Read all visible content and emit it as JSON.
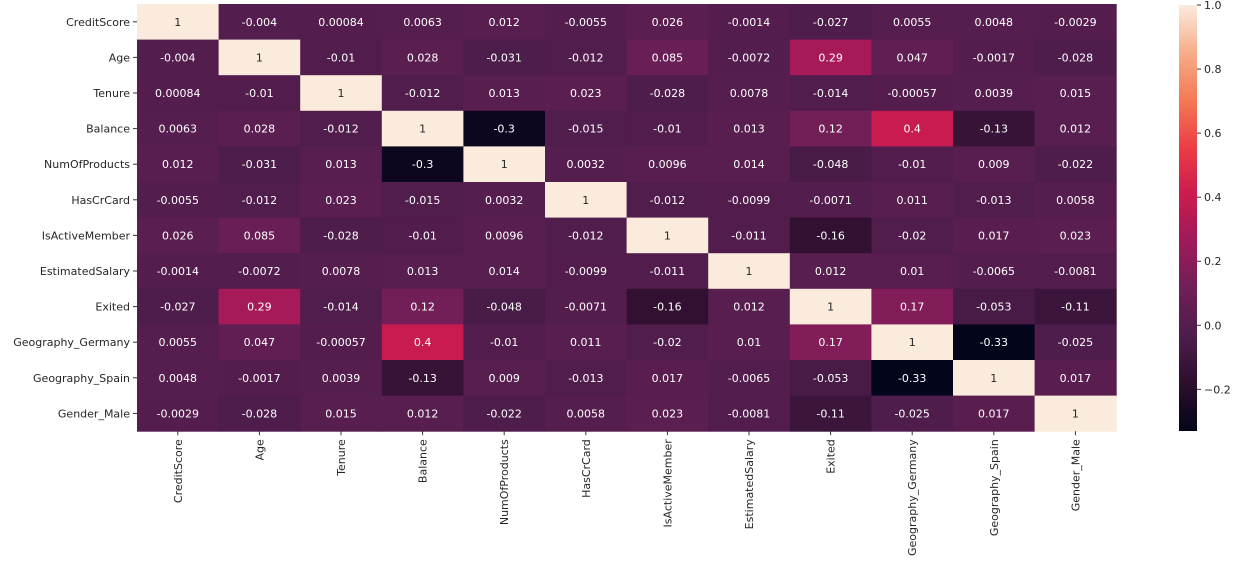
{
  "chart_data": {
    "type": "heatmap",
    "title": "",
    "xlabel": "",
    "ylabel": "",
    "rows": [
      "CreditScore",
      "Age",
      "Tenure",
      "Balance",
      "NumOfProducts",
      "HasCrCard",
      "IsActiveMember",
      "EstimatedSalary",
      "Exited",
      "Geography_Germany",
      "Geography_Spain",
      "Gender_Male"
    ],
    "columns": [
      "CreditScore",
      "Age",
      "Tenure",
      "Balance",
      "NumOfProducts",
      "HasCrCard",
      "IsActiveMember",
      "EstimatedSalary",
      "Exited",
      "Geography_Germany",
      "Geography_Spain",
      "Gender_Male"
    ],
    "values": [
      [
        1,
        -0.004,
        0.00084,
        0.0063,
        0.012,
        -0.0055,
        0.026,
        -0.0014,
        -0.027,
        0.0055,
        0.0048,
        -0.0029
      ],
      [
        -0.004,
        1,
        -0.01,
        0.028,
        -0.031,
        -0.012,
        0.085,
        -0.0072,
        0.29,
        0.047,
        -0.0017,
        -0.028
      ],
      [
        0.00084,
        -0.01,
        1,
        -0.012,
        0.013,
        0.023,
        -0.028,
        0.0078,
        -0.014,
        -0.00057,
        0.0039,
        0.015
      ],
      [
        0.0063,
        0.028,
        -0.012,
        1,
        -0.3,
        -0.015,
        -0.01,
        0.013,
        0.12,
        0.4,
        -0.13,
        0.012
      ],
      [
        0.012,
        -0.031,
        0.013,
        -0.3,
        1,
        0.0032,
        0.0096,
        0.014,
        -0.048,
        -0.01,
        0.009,
        -0.022
      ],
      [
        -0.0055,
        -0.012,
        0.023,
        -0.015,
        0.0032,
        1,
        -0.012,
        -0.0099,
        -0.0071,
        0.011,
        -0.013,
        0.0058
      ],
      [
        0.026,
        0.085,
        -0.028,
        -0.01,
        0.0096,
        -0.012,
        1,
        -0.011,
        -0.16,
        -0.02,
        0.017,
        0.023
      ],
      [
        -0.0014,
        -0.0072,
        0.0078,
        0.013,
        0.014,
        -0.0099,
        -0.011,
        1,
        0.012,
        0.01,
        -0.0065,
        -0.0081
      ],
      [
        -0.027,
        0.29,
        -0.014,
        0.12,
        -0.048,
        -0.0071,
        -0.16,
        0.012,
        1,
        0.17,
        -0.053,
        -0.11
      ],
      [
        0.0055,
        0.047,
        -0.00057,
        0.4,
        -0.01,
        0.011,
        -0.02,
        0.01,
        0.17,
        1,
        -0.33,
        -0.025
      ],
      [
        0.0048,
        -0.0017,
        0.0039,
        -0.13,
        0.009,
        -0.013,
        0.017,
        -0.0065,
        -0.053,
        -0.33,
        1,
        0.017
      ],
      [
        -0.0029,
        -0.028,
        0.015,
        0.012,
        -0.022,
        0.0058,
        0.023,
        -0.0081,
        -0.11,
        -0.025,
        0.017,
        1
      ]
    ],
    "colorscale": {
      "name": "rocket",
      "vmin": -0.33,
      "vmax": 1.0,
      "ticks": [
        1.0,
        0.8,
        0.6,
        0.4,
        0.2,
        0.0,
        -0.2
      ],
      "tick_labels": [
        "1.0",
        "0.8",
        "0.6",
        "0.4",
        "0.2",
        "0.0",
        "−0.2"
      ],
      "stops": [
        "#03051a",
        "#2d0e2e",
        "#4c1d4b",
        "#701f57",
        "#9e1a5b",
        "#cb1b4f",
        "#ed3d45",
        "#f47a54",
        "#f6ad8a",
        "#faebdd"
      ]
    },
    "annot_light_text_color": "#ffffff",
    "annot_dark_text_color": "#262626"
  }
}
